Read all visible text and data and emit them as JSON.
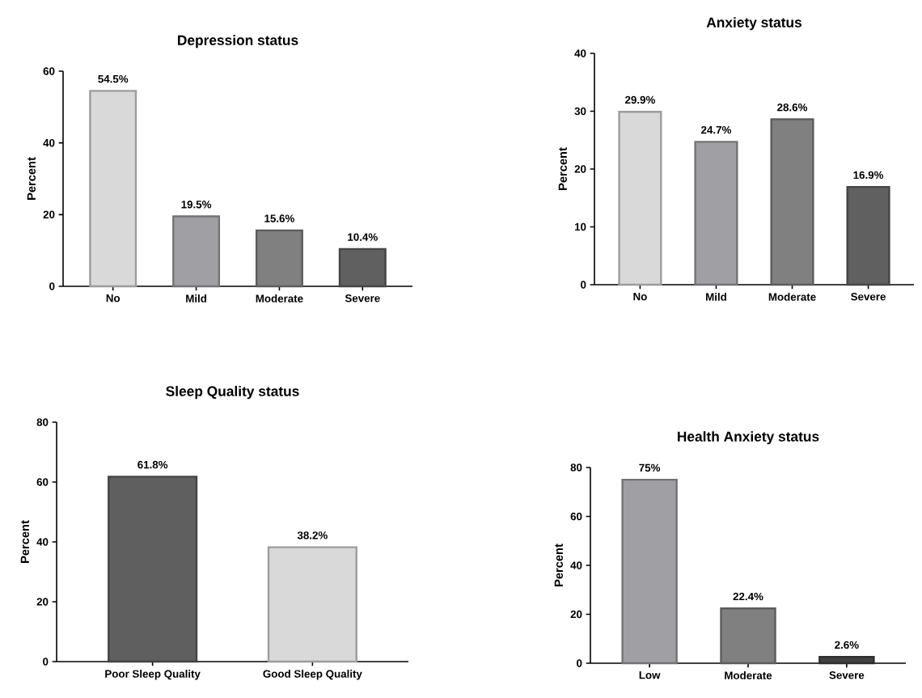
{
  "chart_data": [
    {
      "type": "bar",
      "title": "Depression status",
      "ylabel": "Percent",
      "categories": [
        "No",
        "Mild",
        "Moderate",
        "Severe"
      ],
      "values": [
        54.5,
        19.5,
        15.6,
        10.4
      ],
      "value_labels": [
        "54.5%",
        "19.5%",
        "15.6%",
        "10.4%"
      ],
      "colors": [
        "#d9d9d9",
        "#a0a0a4",
        "#808080",
        "#606060"
      ],
      "ylim": [
        0,
        60
      ],
      "yticks": [
        0,
        20,
        40,
        60
      ]
    },
    {
      "type": "bar",
      "title": "Anxiety status",
      "ylabel": "Percent",
      "categories": [
        "No",
        "Mild",
        "Moderate",
        "Severe"
      ],
      "values": [
        29.9,
        24.7,
        28.6,
        16.9
      ],
      "value_labels": [
        "29.9%",
        "24.7%",
        "28.6%",
        "16.9%"
      ],
      "colors": [
        "#d9d9d9",
        "#a0a0a4",
        "#808080",
        "#606060"
      ],
      "ylim": [
        0,
        40
      ],
      "yticks": [
        0,
        10,
        20,
        30,
        40
      ]
    },
    {
      "type": "bar",
      "title": "Sleep Quality status",
      "ylabel": "Percent",
      "categories": [
        "Poor Sleep Quality",
        "Good Sleep Quality"
      ],
      "values": [
        61.8,
        38.2
      ],
      "value_labels": [
        "61.8%",
        "38.2%"
      ],
      "colors": [
        "#5f5f5f",
        "#d9d9d9"
      ],
      "ylim": [
        0,
        80
      ],
      "yticks": [
        0,
        20,
        40,
        60,
        80
      ]
    },
    {
      "type": "bar",
      "title": "Health Anxiety status",
      "ylabel": "Percent",
      "categories": [
        "Low",
        "Moderate",
        "Severe"
      ],
      "values": [
        75,
        22.4,
        2.6
      ],
      "value_labels": [
        "75%",
        "22.4%",
        "2.6%"
      ],
      "colors": [
        "#a0a0a4",
        "#808080",
        "#404040"
      ],
      "ylim": [
        0,
        80
      ],
      "yticks": [
        0,
        20,
        40,
        60,
        80
      ]
    }
  ]
}
